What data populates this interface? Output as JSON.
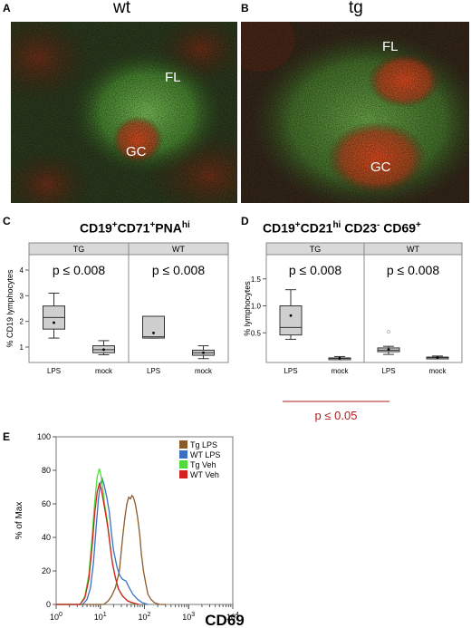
{
  "panels": {
    "a": {
      "letter": "A",
      "title": "wt",
      "labels": {
        "fl": "FL",
        "gc": "GC"
      }
    },
    "b": {
      "letter": "B",
      "title": "tg",
      "labels": {
        "fl": "FL",
        "gc": "GC"
      }
    },
    "c": {
      "letter": "C",
      "title_parts": [
        "CD19",
        "+",
        "CD71",
        "+",
        "PNA",
        "hi"
      ]
    },
    "d": {
      "letter": "D",
      "title_parts": [
        "CD19",
        "+",
        "CD21",
        "hi",
        " CD23",
        "-",
        " CD69",
        "+"
      ]
    },
    "e": {
      "letter": "E"
    }
  },
  "chart_data": [
    {
      "type": "boxplot",
      "panel": "C",
      "ylabel": "% CD19 lymphocytes",
      "ylim": [
        0.4,
        4.6
      ],
      "yticks": [
        1,
        2,
        3,
        4
      ],
      "facets": [
        {
          "label": "TG",
          "pvalue": "p ≤ 0.008",
          "groups": [
            {
              "label": "LPS",
              "min": 1.35,
              "q1": 1.7,
              "median": 2.15,
              "q3": 2.6,
              "max": 3.1,
              "mean": 1.95,
              "outliers": []
            },
            {
              "label": "mock",
              "min": 0.7,
              "q1": 0.78,
              "median": 0.9,
              "q3": 1.05,
              "max": 1.25,
              "mean": 0.9,
              "outliers": []
            }
          ]
        },
        {
          "label": "WT",
          "pvalue": "p ≤ 0.008",
          "groups": [
            {
              "label": "LPS",
              "min": 1.35,
              "q1": 1.35,
              "median": 1.4,
              "q3": 2.2,
              "max": 2.2,
              "mean": 1.55,
              "outliers": []
            },
            {
              "label": "mock",
              "min": 0.55,
              "q1": 0.68,
              "median": 0.78,
              "q3": 0.88,
              "max": 1.05,
              "mean": 0.78,
              "outliers": []
            }
          ]
        }
      ]
    },
    {
      "type": "boxplot",
      "panel": "D",
      "ylabel": "% lymphocytes",
      "ylim": [
        -0.05,
        1.95
      ],
      "yticks": [
        0.5,
        1.0,
        1.5
      ],
      "ytick_labels": [
        "0.5",
        "1.0",
        "1.5"
      ],
      "facets": [
        {
          "label": "TG",
          "pvalue": "p ≤ 0.008",
          "groups": [
            {
              "label": "LPS",
              "min": 0.38,
              "q1": 0.46,
              "median": 0.6,
              "q3": 1.0,
              "max": 1.3,
              "mean": 0.82,
              "outliers": []
            },
            {
              "label": "mock",
              "min": 0.01,
              "q1": 0.02,
              "median": 0.025,
              "q3": 0.035,
              "max": 0.06,
              "mean": 0.03,
              "outliers": []
            }
          ]
        },
        {
          "label": "WT",
          "pvalue": "p ≤ 0.008",
          "groups": [
            {
              "label": "LPS",
              "min": 0.1,
              "q1": 0.15,
              "median": 0.18,
              "q3": 0.22,
              "max": 0.25,
              "mean": 0.19,
              "outliers": [
                0.52
              ]
            },
            {
              "label": "mock",
              "min": 0.02,
              "q1": 0.03,
              "median": 0.04,
              "q3": 0.05,
              "max": 0.07,
              "mean": 0.04,
              "outliers": []
            }
          ]
        }
      ],
      "bracket_label": "p ≤ 0.05",
      "bracket_color": "#b01c1c"
    },
    {
      "type": "line",
      "panel": "E",
      "xlabel": "CD69",
      "ylabel": "% of Max",
      "xscale": "log",
      "xlim": [
        1,
        10000
      ],
      "ylim": [
        0,
        100
      ],
      "yticks": [
        0,
        20,
        40,
        60,
        80,
        100
      ],
      "xtick_labels": [
        {
          "base": "10",
          "exp": "0",
          "value": 1
        },
        {
          "base": "10",
          "exp": "1",
          "value": 10
        },
        {
          "base": "10",
          "exp": "2",
          "value": 100
        },
        {
          "base": "10",
          "exp": "3",
          "value": 1000
        },
        {
          "base": "10",
          "exp": "4",
          "value": 10000
        }
      ],
      "legend_position": "top-right",
      "series": [
        {
          "name": "Tg  LPS",
          "color": "#8b5a2b",
          "x": [
            1,
            12,
            15,
            18,
            22,
            27,
            32,
            36,
            40,
            44,
            48,
            52,
            56,
            62,
            70,
            78,
            85,
            95,
            108,
            120,
            140,
            170,
            220,
            300
          ],
          "y": [
            0,
            0,
            2,
            5,
            10,
            20,
            40,
            52,
            60,
            64,
            63,
            65,
            64,
            60,
            52,
            42,
            30,
            20,
            12,
            6,
            3,
            1,
            0,
            0
          ]
        },
        {
          "name": "WT  LPS",
          "color": "#3a6fc4",
          "x": [
            1,
            4,
            5,
            6,
            7,
            8,
            9,
            10,
            11,
            12,
            13,
            14,
            16,
            18,
            20,
            24,
            28,
            32,
            38,
            45,
            55,
            70,
            90,
            120
          ],
          "y": [
            0,
            0,
            3,
            10,
            25,
            45,
            62,
            72,
            75,
            72,
            68,
            64,
            55,
            42,
            32,
            22,
            17,
            15,
            14,
            10,
            6,
            3,
            1,
            0
          ]
        },
        {
          "name": "Tg  Veh",
          "color": "#4fdc3a",
          "x": [
            1,
            3.5,
            4.5,
            5.5,
            6.5,
            7.5,
            8.5,
            9.5,
            10.5,
            11.5,
            12.5,
            14,
            16,
            18,
            21,
            25,
            30,
            38,
            50,
            70
          ],
          "y": [
            0,
            0,
            5,
            18,
            40,
            62,
            76,
            81,
            76,
            68,
            60,
            52,
            40,
            28,
            18,
            10,
            6,
            3,
            1,
            0
          ]
        },
        {
          "name": "WT  Veh",
          "color": "#d62020",
          "x": [
            1,
            3.5,
            4.5,
            5.5,
            6.5,
            7.5,
            8.5,
            9.5,
            10.5,
            11.5,
            13,
            15,
            17,
            19,
            22,
            26,
            32,
            42,
            55,
            75
          ],
          "y": [
            0,
            0,
            4,
            15,
            34,
            55,
            67,
            72,
            69,
            63,
            55,
            45,
            33,
            24,
            16,
            9,
            5,
            2,
            1,
            0
          ]
        }
      ]
    }
  ]
}
